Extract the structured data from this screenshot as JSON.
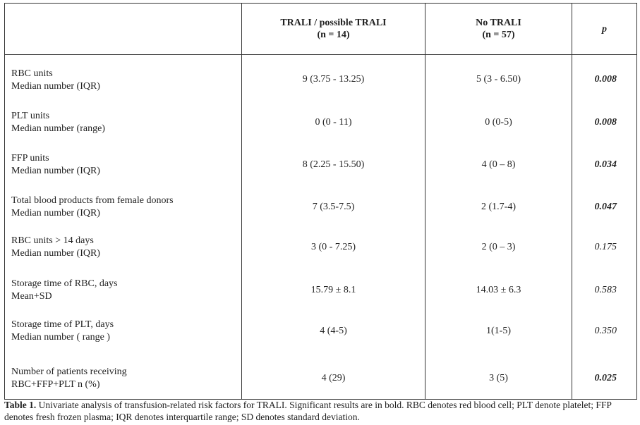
{
  "header": {
    "col1_line1": "TRALI / possible TRALI",
    "col1_line2": "(n = 14)",
    "col2_line1": "No TRALI",
    "col2_line2": "(n = 57)",
    "col3": "p"
  },
  "rows": [
    {
      "label1": "RBC units",
      "label2": "Median number (IQR)",
      "trali": "9 (3.75 - 13.25)",
      "no_trali": "5 (3 - 6.50)",
      "p": "0.008",
      "significant": true
    },
    {
      "label1": "PLT units",
      "label2": "Median number (range)",
      "trali": "0 (0 - 11)",
      "no_trali": "0 (0-5)",
      "p": "0.008",
      "significant": true
    },
    {
      "label1": "FFP units",
      "label2": "Median number (IQR)",
      "trali": "8 (2.25 - 15.50)",
      "no_trali": "4 (0 – 8)",
      "p": "0.034",
      "significant": true
    },
    {
      "label1": "Total blood products from female donors",
      "label2": "Median number (IQR)",
      "trali": "7 (3.5-7.5)",
      "no_trali": "2 (1.7-4)",
      "p": "0.047",
      "significant": true
    },
    {
      "label1": "RBC units > 14 days",
      "label2": "Median number (IQR)",
      "trali": "3 (0 - 7.25)",
      "no_trali": "2 (0 – 3)",
      "p": "0.175",
      "significant": false
    },
    {
      "label1": "Storage time of RBC, days",
      "label2": "Mean+SD",
      "trali": "15.79 ± 8.1",
      "no_trali": "14.03 ± 6.3",
      "p": "0.583",
      "significant": false
    },
    {
      "label1": "Storage time of PLT, days",
      "label2": "Median number ( range )",
      "trali": "4 (4-5)",
      "no_trali": "1(1-5)",
      "p": "0.350",
      "significant": false
    },
    {
      "label1": "Number of patients receiving",
      "label2": "RBC+FFP+PLT n (%)",
      "trali": "4 (29)",
      "no_trali": "3 (5)",
      "p": "0.025",
      "significant": true
    }
  ],
  "caption": {
    "label": "Table 1.",
    "text": " Univariate analysis of transfusion-related risk factors for TRALI. Significant results are in bold. RBC denotes red blood cell; PLT denote platelet; FFP denotes fresh frozen plasma; IQR denotes interquartile range; SD denotes standard deviation."
  }
}
